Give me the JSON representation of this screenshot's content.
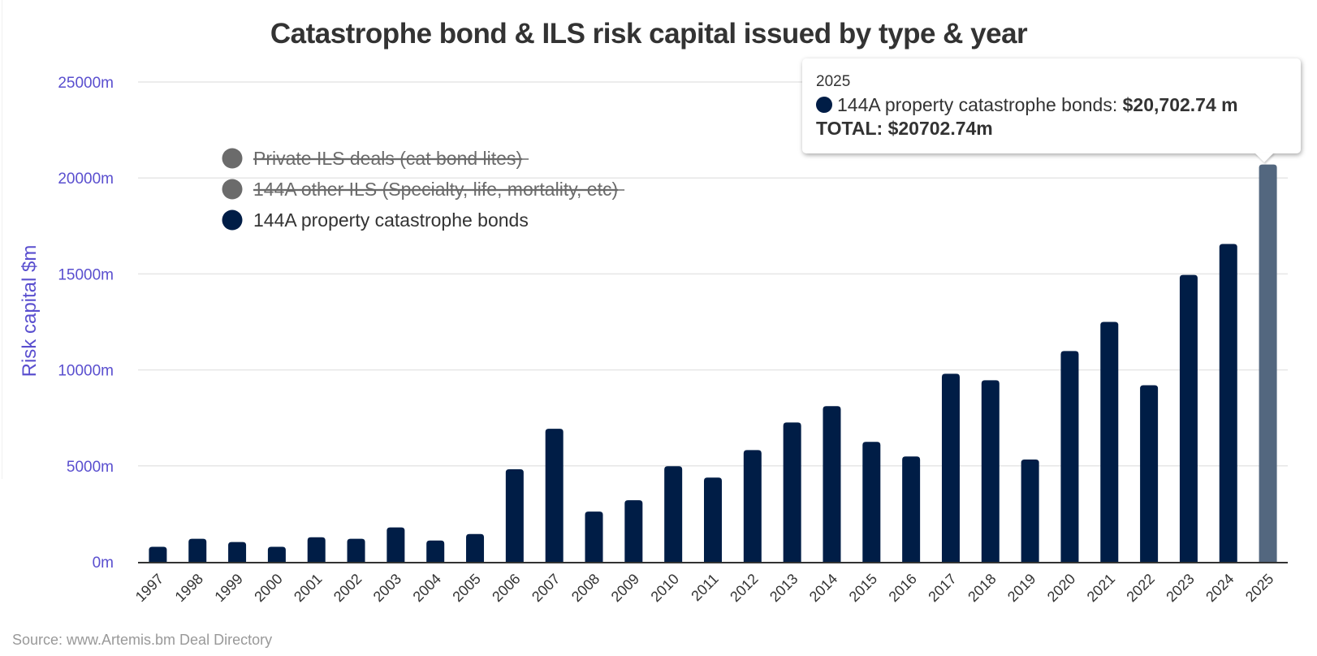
{
  "colors": {
    "primary_series": "#001d46",
    "highlighted_bar": "#53677f",
    "hidden_series": "#6b6b6b",
    "axis_label": "#5a4fcf",
    "text": "#333333",
    "gridline": "#e6e6e6"
  },
  "tooltip": {
    "year": "2025",
    "series_label": "144A property catastrophe bonds: ",
    "series_value": "$20,702.74 m",
    "total": "TOTAL: $20702.74m"
  },
  "chart_data": {
    "type": "bar",
    "title": "Catastrophe bond & ILS risk capital issued by type & year",
    "xlabel": "",
    "ylabel": "Risk capital $m",
    "ylim": [
      0,
      25000
    ],
    "yticks": [
      0,
      5000,
      10000,
      15000,
      20000,
      25000
    ],
    "ytick_labels": [
      "0m",
      "5000m",
      "10000m",
      "15000m",
      "20000m",
      "25000m"
    ],
    "grid": true,
    "legend_position": "top-left",
    "legend": [
      {
        "name": "Private ILS deals (cat bond lites)",
        "visible": false
      },
      {
        "name": "144A other ILS (Specialty, life, mortality, etc)",
        "visible": false
      },
      {
        "name": "144A property catastrophe bonds",
        "visible": true
      }
    ],
    "categories": [
      "1997",
      "1998",
      "1999",
      "2000",
      "2001",
      "2002",
      "2003",
      "2004",
      "2005",
      "2006",
      "2007",
      "2008",
      "2009",
      "2010",
      "2011",
      "2012",
      "2013",
      "2014",
      "2015",
      "2016",
      "2017",
      "2018",
      "2019",
      "2020",
      "2021",
      "2022",
      "2023",
      "2024",
      "2025"
    ],
    "series": [
      {
        "name": "144A property catastrophe bonds",
        "values": [
          780,
          1200,
          1030,
          780,
          1280,
          1200,
          1790,
          1110,
          1450,
          4820,
          6930,
          2620,
          3210,
          4980,
          4390,
          5820,
          7260,
          8110,
          6250,
          5490,
          9800,
          9460,
          5330,
          10980,
          12500,
          9200,
          14950,
          16560,
          20702.74
        ]
      }
    ],
    "highlighted_category": "2025",
    "source": "Source: www.Artemis.bm Deal Directory"
  }
}
